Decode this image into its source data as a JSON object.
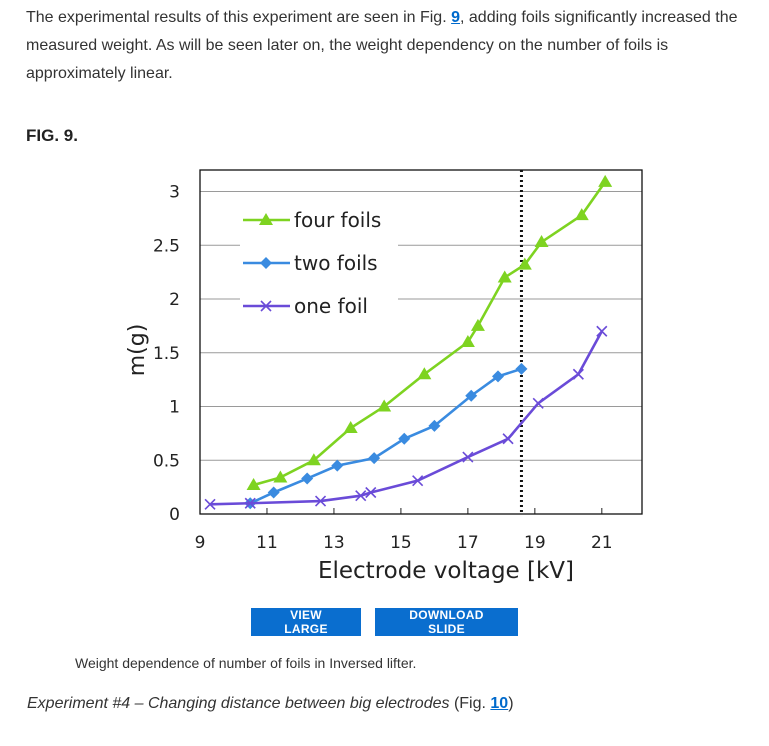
{
  "intro": {
    "text_before": "The experimental results of this experiment are seen in Fig. ",
    "link": "9",
    "text_after": ", adding foils significantly increased the measured weight. As will be seen later on, the weight dependency on the number of foils is approximately linear."
  },
  "figure": {
    "label": "FIG. 9.",
    "view_large": "VIEW LARGE",
    "download_slide": "DOWNLOAD SLIDE",
    "caption": "Weight dependence of number of foils in Inversed lifter."
  },
  "next": {
    "italic": "Experiment #4 – Changing distance between big electrodes",
    "before_link": " (Fig. ",
    "link": "10",
    "after_link": ")"
  },
  "chart_data": {
    "type": "line",
    "xlabel": "Electrode voltage [kV]",
    "ylabel": "m(g)",
    "xlim": [
      9,
      22.2
    ],
    "ylim": [
      0,
      3.2
    ],
    "xticks": [
      9,
      11,
      13,
      15,
      17,
      19,
      21
    ],
    "yticks": [
      0,
      0.5,
      1,
      1.5,
      2,
      2.5,
      3
    ],
    "ytick_labels": [
      "0",
      "0.5",
      "1",
      "1.5",
      "2",
      "2.5",
      "3"
    ],
    "grid": "horizontal",
    "legend": "top-left",
    "vline_x": 18.6,
    "series": [
      {
        "name": "four foils",
        "color": "#7ed321",
        "marker": "triangle",
        "x": [
          10.6,
          11.4,
          12.4,
          13.5,
          14.5,
          15.7,
          17.0,
          17.3,
          18.1,
          18.7,
          19.2,
          20.4,
          21.1
        ],
        "y": [
          0.27,
          0.34,
          0.5,
          0.8,
          1.0,
          1.3,
          1.6,
          1.75,
          2.2,
          2.32,
          2.53,
          2.78,
          3.09
        ]
      },
      {
        "name": "two foils",
        "color": "#3a8be0",
        "marker": "diamond",
        "x": [
          10.5,
          11.2,
          12.2,
          13.1,
          14.2,
          15.1,
          16.0,
          17.1,
          17.9,
          18.6
        ],
        "y": [
          0.1,
          0.2,
          0.33,
          0.45,
          0.52,
          0.7,
          0.82,
          1.1,
          1.28,
          1.35
        ]
      },
      {
        "name": "one foil",
        "color": "#6a4bd8",
        "marker": "x",
        "x": [
          9.3,
          10.5,
          12.6,
          13.8,
          14.1,
          15.5,
          17.0,
          18.2,
          19.1,
          20.3,
          21.0
        ],
        "y": [
          0.09,
          0.1,
          0.12,
          0.17,
          0.2,
          0.31,
          0.53,
          0.7,
          1.03,
          1.3,
          1.7
        ]
      }
    ]
  }
}
